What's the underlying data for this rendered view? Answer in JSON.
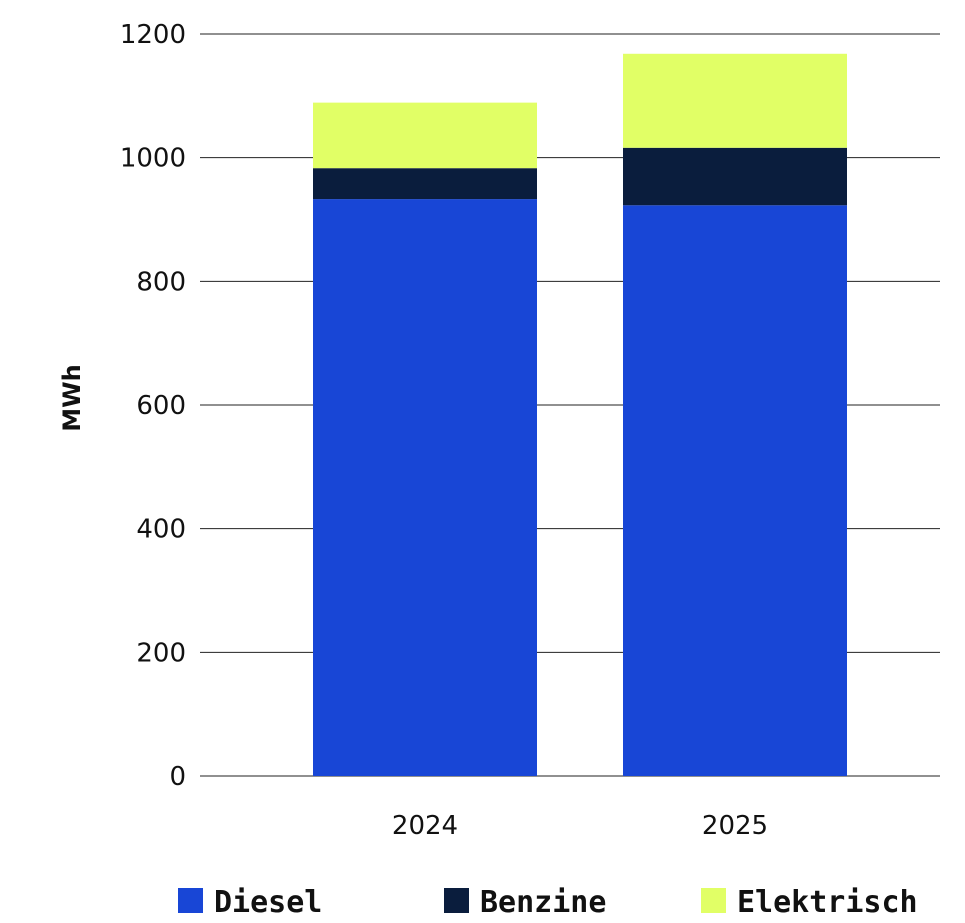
{
  "chart_data": {
    "type": "bar",
    "stacked": true,
    "categories": [
      "2024",
      "2025"
    ],
    "series": [
      {
        "name": "Diesel",
        "values": [
          933,
          923
        ],
        "color": "#1846d6"
      },
      {
        "name": "Benzine",
        "values": [
          50,
          93
        ],
        "color": "#0a1d3d"
      },
      {
        "name": "Elektrisch",
        "values": [
          106,
          152
        ],
        "color": "#e1ff66"
      }
    ],
    "title": "",
    "xlabel": "",
    "ylabel": "MWh",
    "ylim": [
      0,
      1200
    ],
    "yticks": [
      "0",
      "200",
      "400",
      "600",
      "800",
      "1000",
      "1200"
    ],
    "grid": "horizontal",
    "legend": "bottom"
  }
}
